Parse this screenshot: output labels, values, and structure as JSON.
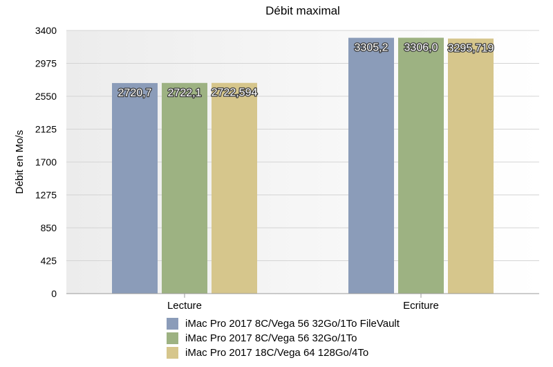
{
  "chart_data": {
    "type": "bar",
    "title": "Débit maximal",
    "xlabel": "",
    "ylabel": "Débit en Mo/s",
    "ylim": [
      0,
      3400
    ],
    "yticks": [
      0,
      425,
      850,
      1275,
      1700,
      2125,
      2550,
      2975,
      3400
    ],
    "grid": true,
    "legend_position": "bottom",
    "categories": [
      "Lecture",
      "Ecriture"
    ],
    "series": [
      {
        "name": "iMac Pro 2017 8C/Vega 56 32Go/1To FileVault",
        "color": "#8b9cb9",
        "values": [
          2720.7,
          3305.2
        ],
        "labels": [
          "2720,7",
          "3305,2"
        ]
      },
      {
        "name": "iMac Pro 2017 8C/Vega 56 32Go/1To",
        "color": "#9db282",
        "values": [
          2722.1,
          3306.0
        ],
        "labels": [
          "2722,1",
          "3306,0"
        ]
      },
      {
        "name": "iMac Pro 2017 18C/Vega 64 128Go/4To",
        "color": "#d6c68c",
        "values": [
          2722.594,
          3295.719
        ],
        "labels": [
          "2722,594",
          "3295,719"
        ]
      }
    ]
  }
}
